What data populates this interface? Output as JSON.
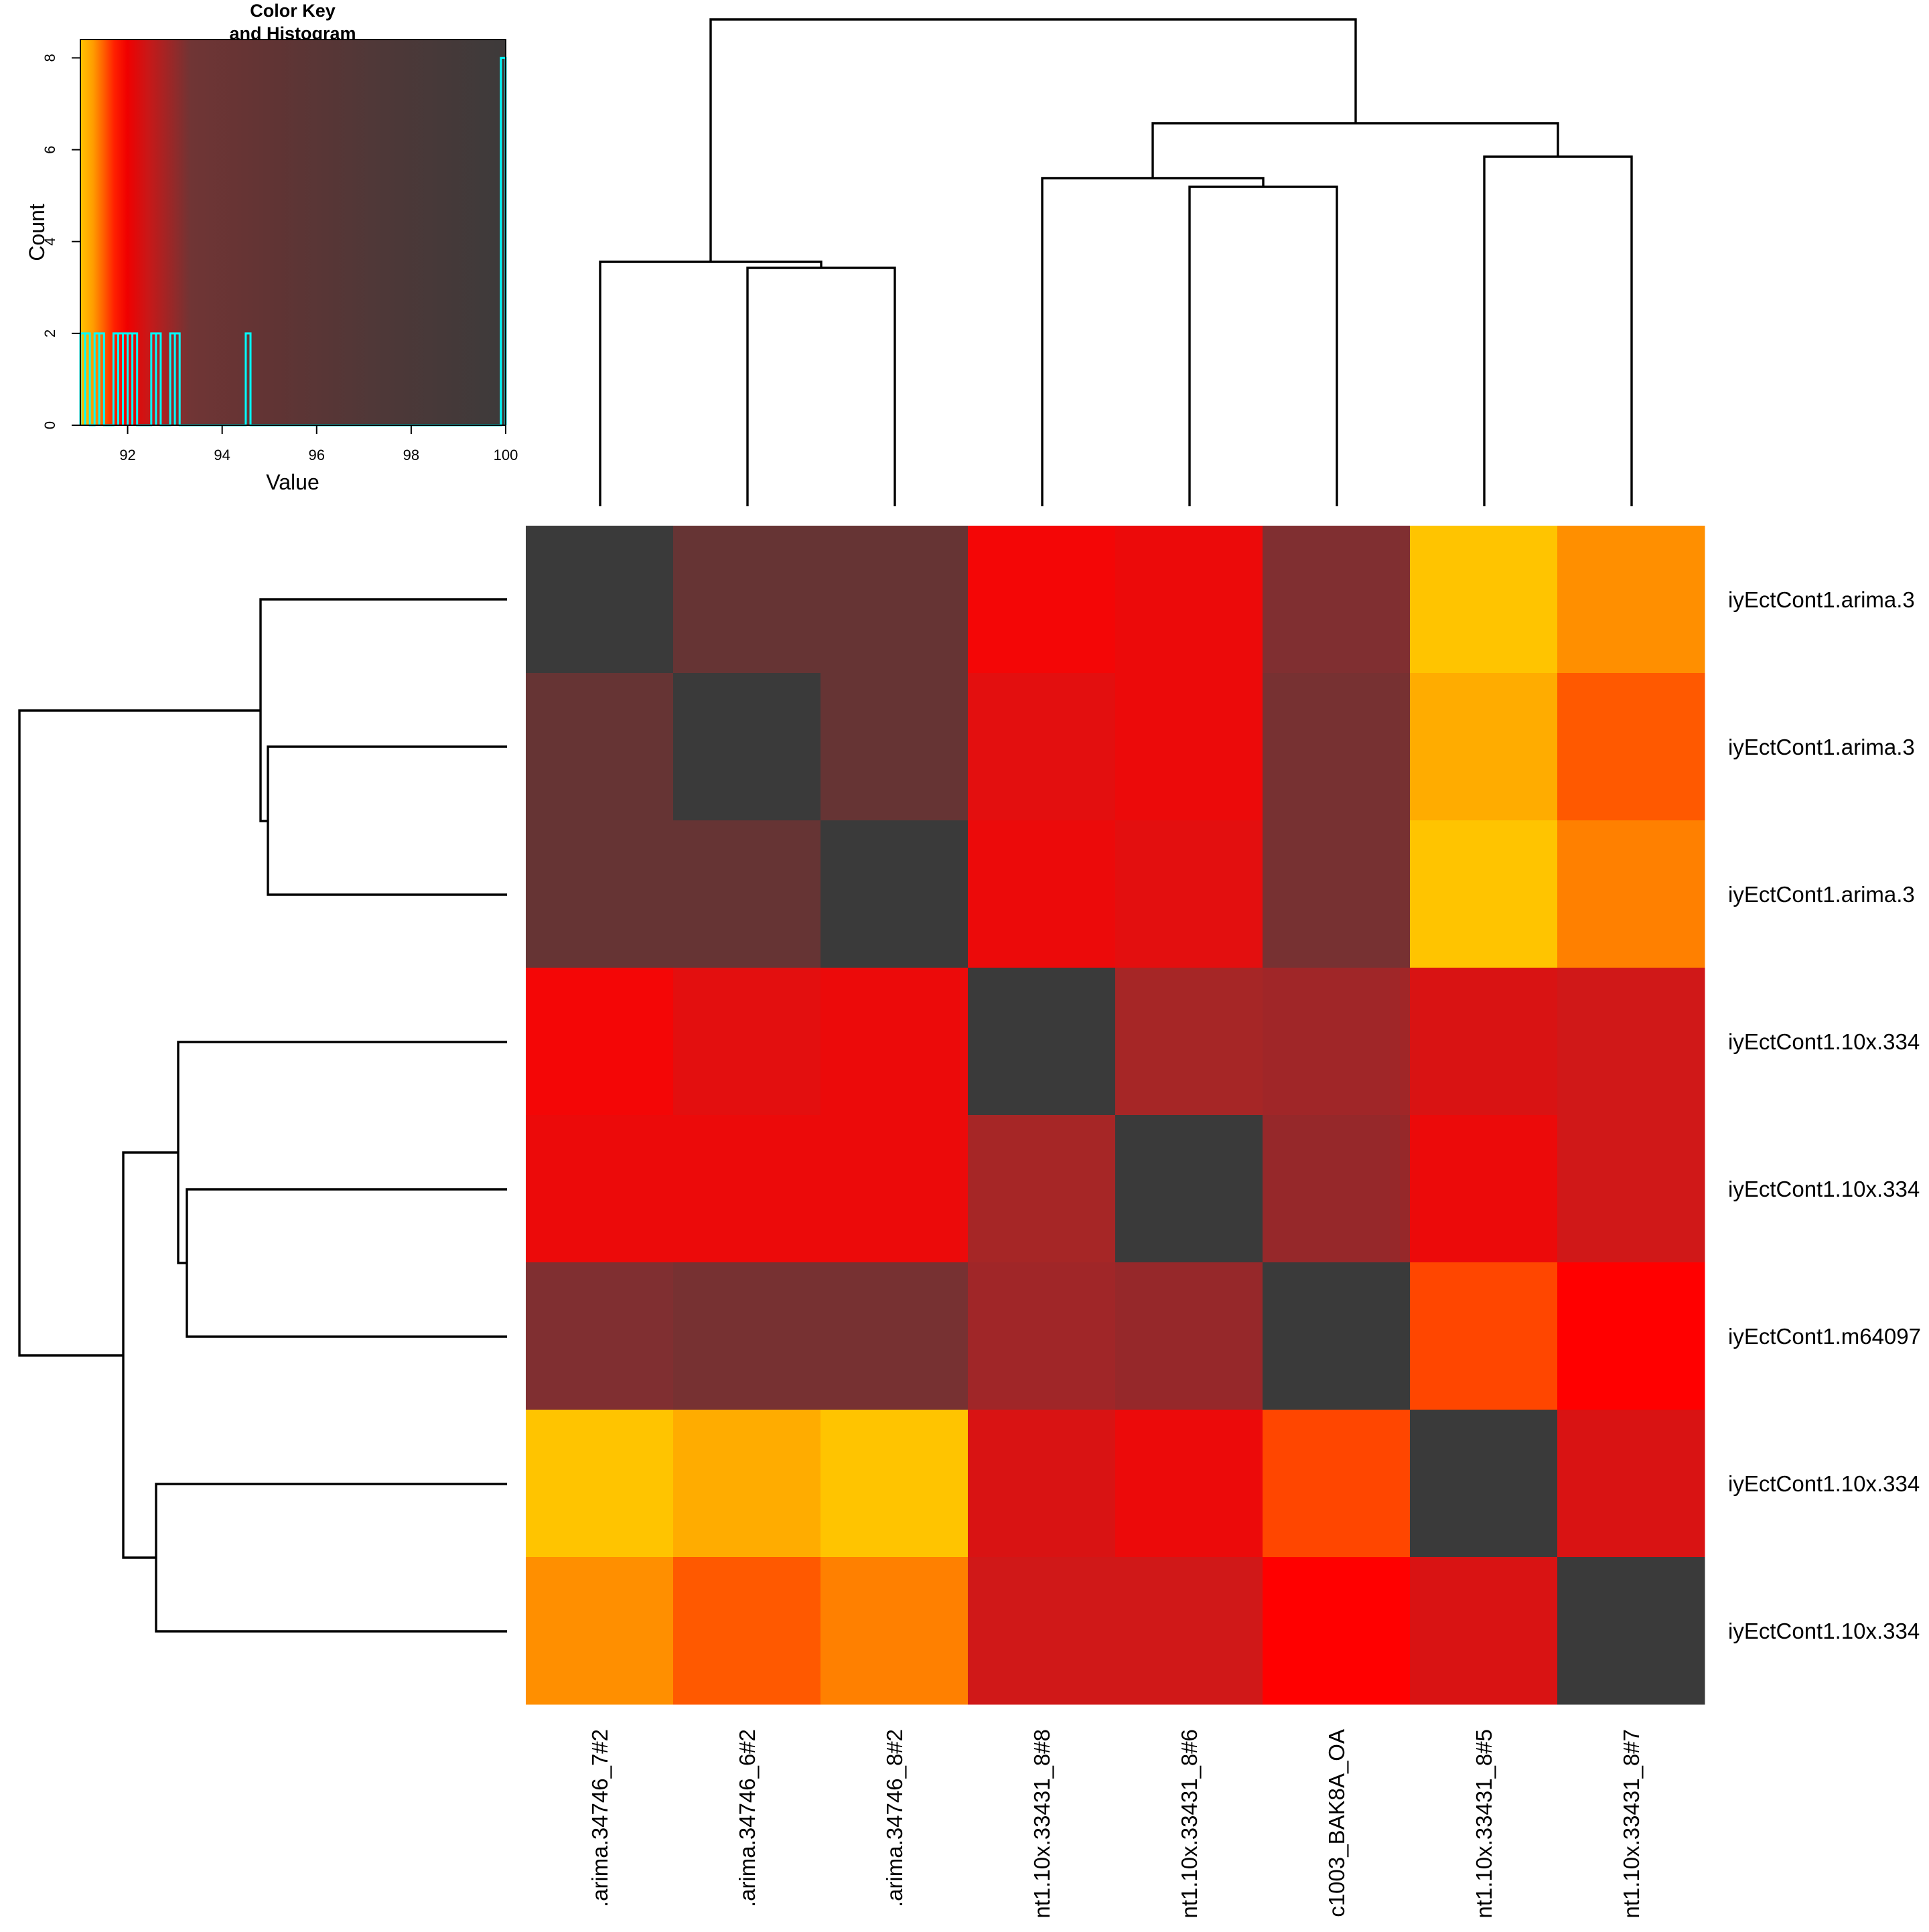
{
  "chart_data": {
    "type": "heatmap",
    "colors": {
      "diagonal": "#3a3a3a",
      "histogram_line": "#00ffff",
      "key_gradient": [
        "#ffc400",
        "#ff9800",
        "#f00000",
        "#b01f1f",
        "#6a3535",
        "#5a3434",
        "#3f3a3a"
      ]
    },
    "color_key": {
      "title_line1": "Color Key",
      "title_line2": "and Histogram",
      "xlabel": "Value",
      "ylabel": "Count",
      "xlim": [
        91,
        100
      ],
      "ylim": [
        0,
        8.4
      ],
      "x_ticks": [
        "92",
        "94",
        "96",
        "98",
        "100"
      ],
      "y_ticks": [
        "0",
        "2",
        "4",
        "6",
        "8"
      ],
      "histogram": [
        {
          "x": 91.05,
          "count": 2
        },
        {
          "x": 91.15,
          "count": 2
        },
        {
          "x": 91.35,
          "count": 2
        },
        {
          "x": 91.45,
          "count": 2
        },
        {
          "x": 91.75,
          "count": 2
        },
        {
          "x": 91.85,
          "count": 2
        },
        {
          "x": 91.95,
          "count": 2
        },
        {
          "x": 92.05,
          "count": 2
        },
        {
          "x": 92.15,
          "count": 2
        },
        {
          "x": 92.55,
          "count": 2
        },
        {
          "x": 92.65,
          "count": 2
        },
        {
          "x": 92.95,
          "count": 2
        },
        {
          "x": 93.05,
          "count": 2
        },
        {
          "x": 94.55,
          "count": 2
        },
        {
          "x": 99.95,
          "count": 8
        }
      ]
    },
    "rows": [
      "iyEctCont1.arima.3",
      "iyEctCont1.arima.3",
      "iyEctCont1.arima.3",
      "iyEctCont1.10x.334",
      "iyEctCont1.10x.334",
      "iyEctCont1.m64097",
      "iyEctCont1.10x.334",
      "iyEctCont1.10x.334"
    ],
    "columns": [
      ".arima.34746_7#2",
      ".arima.34746_6#2",
      ".arima.34746_8#2",
      "nt1.10x.33431_8#8",
      "nt1.10x.33431_8#6",
      "c1003_BAK8A_OA",
      "nt1.10x.33431_8#5",
      "nt1.10x.33431_8#7"
    ],
    "values": [
      [
        100,
        94.6,
        94.6,
        92.2,
        92.3,
        94.0,
        91.1,
        91.5
      ],
      [
        94.6,
        100,
        94.6,
        92.4,
        92.3,
        94.2,
        91.3,
        91.8
      ],
      [
        94.6,
        94.6,
        100,
        92.3,
        92.4,
        94.2,
        91.1,
        91.6
      ],
      [
        92.2,
        92.4,
        92.3,
        100,
        93.2,
        93.3,
        92.5,
        92.6
      ],
      [
        92.3,
        92.3,
        92.3,
        93.2,
        100,
        93.5,
        92.3,
        92.6
      ],
      [
        94.0,
        94.2,
        94.2,
        93.3,
        93.5,
        100,
        91.9,
        92.05
      ],
      [
        91.1,
        91.3,
        91.1,
        92.5,
        92.3,
        91.9,
        100,
        92.5
      ],
      [
        91.5,
        91.8,
        91.6,
        92.6,
        92.6,
        92.05,
        92.5,
        100
      ]
    ]
  }
}
